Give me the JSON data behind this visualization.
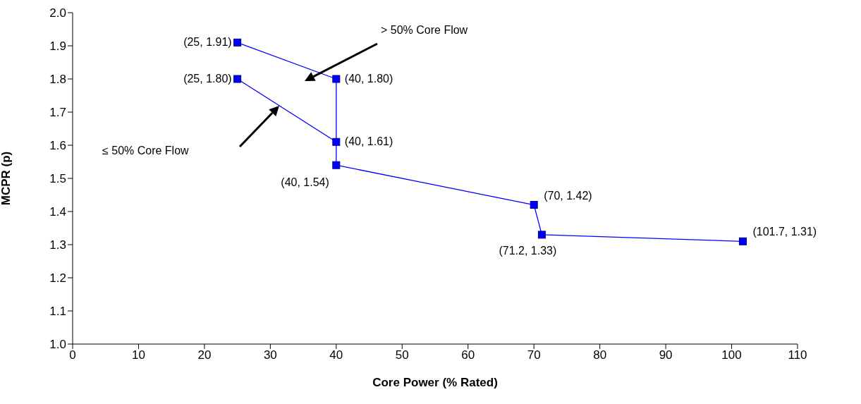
{
  "chart_data": {
    "type": "line",
    "xlabel": "Core Power (% Rated)",
    "ylabel": "MCPR (p)",
    "xlim": [
      0,
      110
    ],
    "xticks": [
      0,
      10,
      20,
      30,
      40,
      50,
      60,
      70,
      80,
      90,
      100,
      110
    ],
    "ylim": [
      1.0,
      2.0
    ],
    "yticks": [
      {
        "value": 1,
        "label": "1.0"
      },
      1.1,
      1.2,
      1.3,
      1.4,
      1.5,
      1.6,
      1.7,
      1.8,
      1.9,
      {
        "value": 2,
        "label": "2.0"
      }
    ],
    "annotations": [
      "> 50% Core Flow",
      "≤ 50% Core Flow"
    ],
    "grid": false,
    "legend": false,
    "marker": "square",
    "line_style": "solid",
    "series": [
      {
        "color": "#0000ff",
        "x": [
          25,
          40,
          40,
          70,
          71.2,
          101.7
        ],
        "values": [
          1.91,
          1.8,
          1.54,
          1.42,
          1.33,
          1.31
        ],
        "value_labels": [
          "(25, 1.91)",
          "(40, 1.80)",
          "(40, 1.54)",
          "(70, 1.42)",
          "(71.2, 1.33)",
          "(101.7, 1.31)"
        ]
      },
      {
        "color": "#0000ff",
        "x": [
          25,
          40
        ],
        "values": [
          1.8,
          1.61
        ],
        "value_labels": [
          "(25, 1.80)",
          "(40, 1.61)"
        ]
      }
    ]
  }
}
